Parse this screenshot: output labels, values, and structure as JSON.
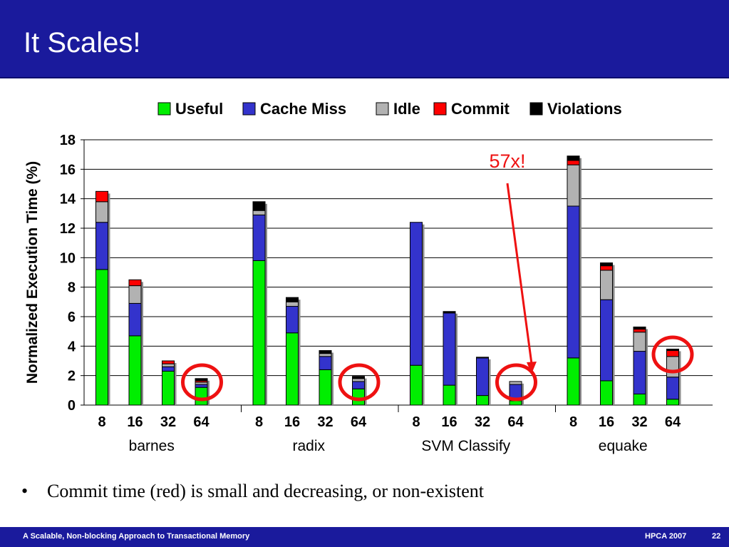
{
  "slide": {
    "title": "It Scales!",
    "bullet_symbol": "•",
    "bullet": "Commit time (red) is small and decreasing, or non-existent",
    "footer_left": "A Scalable, Non-blocking Approach to Transactional Memory",
    "footer_conf": "HPCA 2007",
    "footer_page": "22"
  },
  "colors": {
    "useful": "#00ee00",
    "cache_miss": "#3333cc",
    "idle": "#b2b2b2",
    "commit": "#ff0000",
    "violations": "#000000",
    "title_bg": "#1a1a9c",
    "annotation": "#ee1111"
  },
  "chart_data": {
    "type": "bar",
    "stacked": true,
    "ylabel": "Normalized Execution Time (%)",
    "xlabel": "",
    "ylim": [
      0,
      18
    ],
    "yticks": [
      0,
      2,
      4,
      6,
      8,
      10,
      12,
      14,
      16,
      18
    ],
    "grid": true,
    "legend_position": "top",
    "annotation": "57x!",
    "groups": [
      {
        "name": "barnes",
        "categories": [
          "8",
          "16",
          "32",
          "64"
        ]
      },
      {
        "name": "radix",
        "categories": [
          "8",
          "16",
          "32",
          "64"
        ]
      },
      {
        "name": "SVM Classify",
        "categories": [
          "8",
          "16",
          "32",
          "64"
        ]
      },
      {
        "name": "equake",
        "categories": [
          "8",
          "16",
          "32",
          "64"
        ]
      }
    ],
    "series": [
      {
        "name": "Useful",
        "values": [
          9.2,
          4.7,
          2.3,
          1.2,
          9.8,
          4.9,
          2.4,
          1.1,
          2.7,
          1.35,
          0.65,
          0.3,
          3.2,
          1.65,
          0.75,
          0.4
        ]
      },
      {
        "name": "Cache Miss",
        "values": [
          3.2,
          2.2,
          0.3,
          0.2,
          3.1,
          1.8,
          0.9,
          0.5,
          9.7,
          4.9,
          2.55,
          1.1,
          10.3,
          5.5,
          2.9,
          1.5
        ]
      },
      {
        "name": "Idle",
        "values": [
          1.4,
          1.2,
          0.2,
          0.15,
          0.3,
          0.3,
          0.2,
          0.2,
          0,
          0.05,
          0.05,
          0.2,
          2.8,
          2.0,
          1.3,
          1.4
        ]
      },
      {
        "name": "Commit",
        "values": [
          0.7,
          0.4,
          0.2,
          0.1,
          0,
          0,
          0,
          0,
          0,
          0,
          0,
          0,
          0.3,
          0.3,
          0.2,
          0.4
        ]
      },
      {
        "name": "Violations",
        "values": [
          0,
          0,
          0,
          0.15,
          0.6,
          0.3,
          0.2,
          0.15,
          0,
          0.05,
          0,
          0,
          0.3,
          0.2,
          0.15,
          0.1
        ]
      }
    ]
  }
}
